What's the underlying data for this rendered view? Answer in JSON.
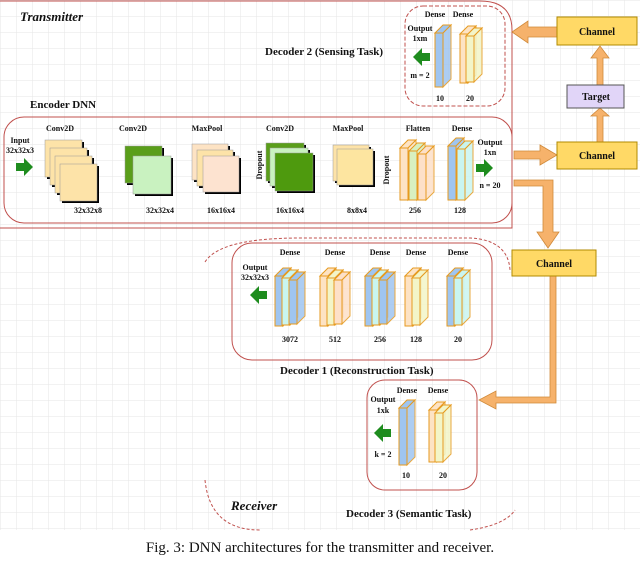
{
  "colors": {
    "channel": "#ffd966",
    "channel_border": "#b08a00",
    "target": "#e1d5f8",
    "arrow": "#f6b26b",
    "green_arrow": "#1e8c1e",
    "frame": "#c0504d",
    "grid": "#e6e6e6"
  },
  "transmitter": {
    "label": "Transmitter"
  },
  "receiver": {
    "label": "Receiver"
  },
  "encoder": {
    "title": "Encoder DNN",
    "input": {
      "label": "Input",
      "shape": "32x32x3"
    },
    "layers": [
      {
        "type": "Conv2D",
        "size": "32x32x8"
      },
      {
        "type": "Conv2D",
        "size": "32x32x4"
      },
      {
        "type": "MaxPool",
        "size": "16x16x4"
      },
      {
        "type": "Conv2D",
        "size": "16x16x4"
      },
      {
        "type": "MaxPool",
        "size": "8x8x4"
      },
      {
        "type": "Flatten",
        "size": "256"
      },
      {
        "type": "Dense",
        "size": "128"
      }
    ],
    "dropout": "Dropout",
    "output": {
      "label": "Output",
      "shape": "1xn",
      "note": "n = 20"
    }
  },
  "decoder2": {
    "title": "Decoder 2 (Sensing Task)",
    "layers": [
      {
        "type": "Dense",
        "size": "10"
      },
      {
        "type": "Dense",
        "size": "20"
      }
    ],
    "output": {
      "label": "Output",
      "shape": "1xm",
      "note": "m = 2"
    }
  },
  "decoder1": {
    "title": "Decoder 1 (Reconstruction Task)",
    "layers": [
      {
        "type": "Dense",
        "size": "3072"
      },
      {
        "type": "Dense",
        "size": "512"
      },
      {
        "type": "Dense",
        "size": "256"
      },
      {
        "type": "Dense",
        "size": "128"
      },
      {
        "type": "Dense",
        "size": "20"
      }
    ],
    "output": {
      "label": "Output",
      "shape": "32x32x3"
    }
  },
  "decoder3": {
    "title": "Decoder 3 (Semantic Task)",
    "layers": [
      {
        "type": "Dense",
        "size": "10"
      },
      {
        "type": "Dense",
        "size": "20"
      }
    ],
    "output": {
      "label": "Output",
      "shape": "1xk",
      "note": "k = 2"
    }
  },
  "channels": [
    "Channel",
    "Channel",
    "Channel"
  ],
  "target": "Target",
  "caption": "Fig. 3: DNN architectures for the transmitter and receiver."
}
